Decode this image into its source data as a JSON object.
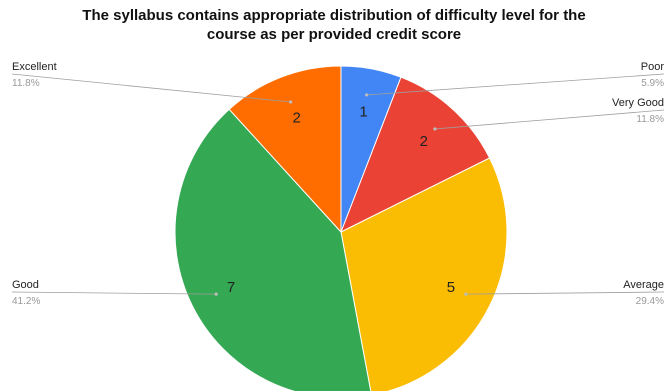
{
  "chart_data": {
    "type": "pie",
    "title_line1": "The syllabus contains appropriate distribution of difficulty level for the",
    "title_line2": "course as per provided credit score",
    "slices": [
      {
        "label": "Poor",
        "value": 1,
        "percent": "5.9%",
        "color": "#4285f4"
      },
      {
        "label": "Very Good",
        "value": 2,
        "percent": "11.8%",
        "color": "#ea4335"
      },
      {
        "label": "Average",
        "value": 5,
        "percent": "29.4%",
        "color": "#fbbc04"
      },
      {
        "label": "Good",
        "value": 7,
        "percent": "41.2%",
        "color": "#34a853"
      },
      {
        "label": "Excellent",
        "value": 2,
        "percent": "11.8%",
        "color": "#ff6d01"
      }
    ]
  }
}
